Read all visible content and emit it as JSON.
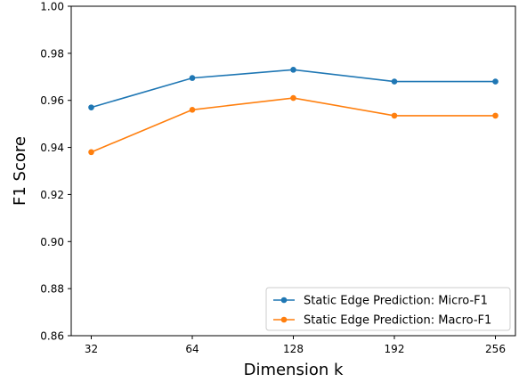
{
  "chart_data": {
    "type": "line",
    "title": "",
    "xlabel": "Dimension k",
    "ylabel": "F1 Score",
    "categories": [
      "32",
      "64",
      "128",
      "192",
      "256"
    ],
    "ylim": [
      0.86,
      1.0
    ],
    "yticks": [
      0.86,
      0.88,
      0.9,
      0.92,
      0.94,
      0.96,
      0.98,
      1.0
    ],
    "ytick_labels": [
      "0.86",
      "0.88",
      "0.90",
      "0.92",
      "0.94",
      "0.96",
      "0.98",
      "1.00"
    ],
    "grid": false,
    "legend_position": "lower-right",
    "series": [
      {
        "name": "Static Edge Prediction: Micro-F1",
        "color": "#1f77b4",
        "marker": "circle",
        "values": [
          0.957,
          0.9695,
          0.973,
          0.968,
          0.968
        ]
      },
      {
        "name": "Static Edge Prediction: Macro-F1",
        "color": "#ff7f0e",
        "marker": "circle",
        "values": [
          0.938,
          0.956,
          0.961,
          0.9535,
          0.9535
        ]
      }
    ]
  }
}
